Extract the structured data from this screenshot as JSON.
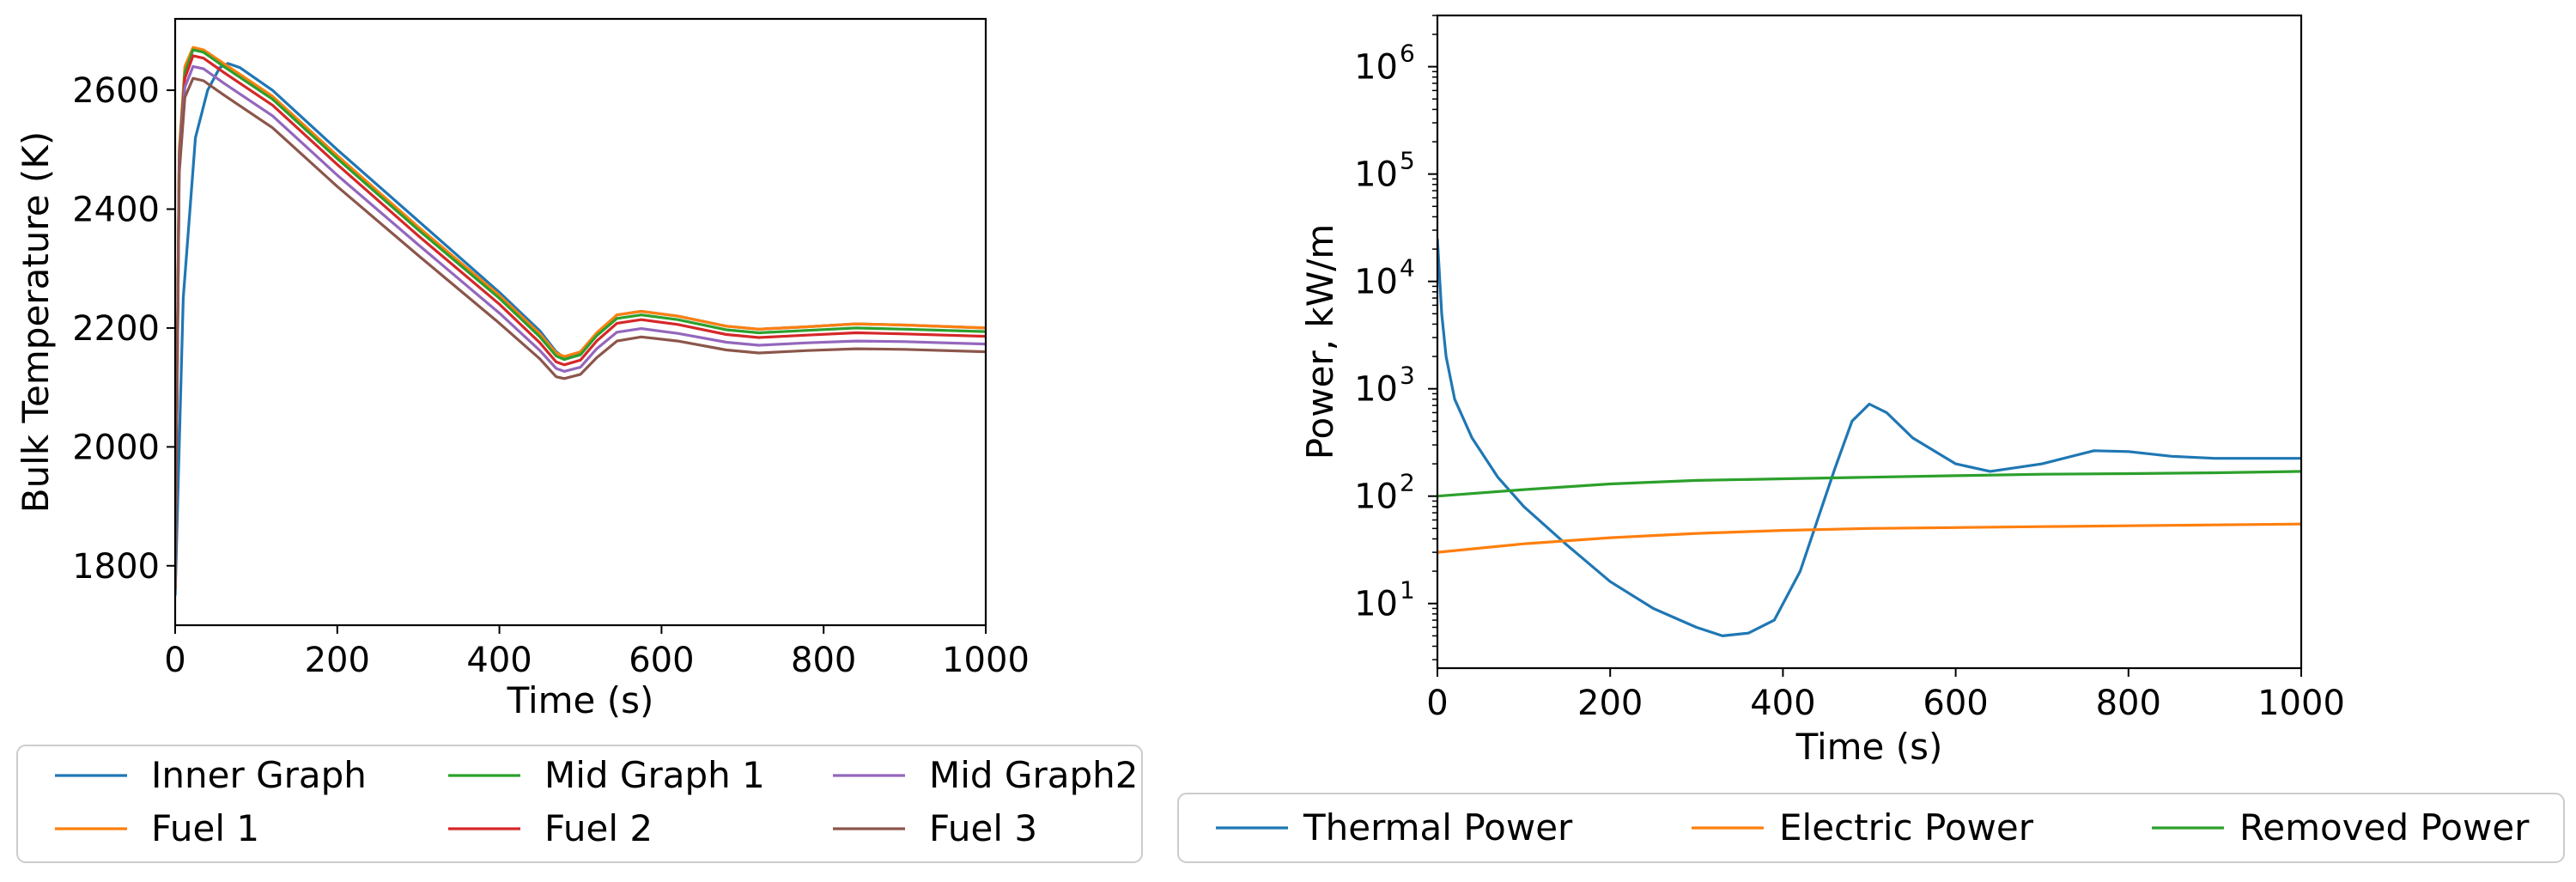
{
  "chart_data": [
    {
      "type": "line",
      "title": "",
      "xlabel": "Time (s)",
      "ylabel": "Bulk Temperature (K)",
      "xlim": [
        0,
        1000
      ],
      "ylim": [
        1700,
        2720
      ],
      "x_ticks": [
        0,
        200,
        400,
        600,
        800,
        1000
      ],
      "y_ticks": [
        1800,
        2000,
        2200,
        2400,
        2600
      ],
      "grid": false,
      "legend_position": "bottom",
      "series": [
        {
          "name": "Inner Graph",
          "color": "#1f77b4",
          "points": [
            [
              0,
              1750
            ],
            [
              10,
              2250
            ],
            [
              25,
              2520
            ],
            [
              40,
              2600
            ],
            [
              55,
              2638
            ],
            [
              65,
              2645
            ],
            [
              80,
              2638
            ],
            [
              120,
              2600
            ],
            [
              200,
              2500
            ],
            [
              300,
              2380
            ],
            [
              400,
              2260
            ],
            [
              450,
              2195
            ],
            [
              470,
              2160
            ],
            [
              480,
              2150
            ],
            [
              500,
              2158
            ],
            [
              520,
              2190
            ],
            [
              545,
              2222
            ],
            [
              575,
              2228
            ],
            [
              620,
              2220
            ],
            [
              680,
              2203
            ],
            [
              720,
              2198
            ],
            [
              780,
              2202
            ],
            [
              840,
              2207
            ],
            [
              900,
              2205
            ],
            [
              1000,
              2200
            ]
          ]
        },
        {
          "name": "Fuel 1",
          "color": "#ff7f0e",
          "points": [
            [
              0,
              1760
            ],
            [
              5,
              2500
            ],
            [
              12,
              2640
            ],
            [
              22,
              2672
            ],
            [
              35,
              2668
            ],
            [
              60,
              2645
            ],
            [
              120,
              2590
            ],
            [
              200,
              2490
            ],
            [
              300,
              2370
            ],
            [
              400,
              2255
            ],
            [
              450,
              2190
            ],
            [
              470,
              2158
            ],
            [
              480,
              2152
            ],
            [
              500,
              2160
            ],
            [
              520,
              2192
            ],
            [
              545,
              2222
            ],
            [
              575,
              2228
            ],
            [
              620,
              2220
            ],
            [
              680,
              2203
            ],
            [
              720,
              2198
            ],
            [
              780,
              2202
            ],
            [
              840,
              2207
            ],
            [
              900,
              2205
            ],
            [
              1000,
              2200
            ]
          ]
        },
        {
          "name": "Mid Graph 1",
          "color": "#2ca02c",
          "points": [
            [
              0,
              1760
            ],
            [
              5,
              2490
            ],
            [
              12,
              2630
            ],
            [
              22,
              2668
            ],
            [
              35,
              2664
            ],
            [
              60,
              2640
            ],
            [
              120,
              2585
            ],
            [
              200,
              2485
            ],
            [
              300,
              2365
            ],
            [
              400,
              2250
            ],
            [
              450,
              2185
            ],
            [
              470,
              2153
            ],
            [
              480,
              2147
            ],
            [
              500,
              2155
            ],
            [
              520,
              2187
            ],
            [
              545,
              2216
            ],
            [
              575,
              2222
            ],
            [
              620,
              2214
            ],
            [
              680,
              2197
            ],
            [
              720,
              2192
            ],
            [
              780,
              2196
            ],
            [
              840,
              2200
            ],
            [
              900,
              2198
            ],
            [
              1000,
              2194
            ]
          ]
        },
        {
          "name": "Fuel 2",
          "color": "#d62728",
          "points": [
            [
              0,
              1760
            ],
            [
              5,
              2480
            ],
            [
              12,
              2620
            ],
            [
              22,
              2658
            ],
            [
              35,
              2654
            ],
            [
              60,
              2630
            ],
            [
              120,
              2575
            ],
            [
              200,
              2475
            ],
            [
              300,
              2355
            ],
            [
              400,
              2240
            ],
            [
              450,
              2175
            ],
            [
              470,
              2143
            ],
            [
              480,
              2138
            ],
            [
              500,
              2146
            ],
            [
              520,
              2178
            ],
            [
              545,
              2208
            ],
            [
              575,
              2214
            ],
            [
              620,
              2206
            ],
            [
              680,
              2189
            ],
            [
              720,
              2184
            ],
            [
              780,
              2188
            ],
            [
              840,
              2192
            ],
            [
              900,
              2190
            ],
            [
              1000,
              2186
            ]
          ]
        },
        {
          "name": "Mid Graph2",
          "color": "#9467bd",
          "points": [
            [
              0,
              1760
            ],
            [
              5,
              2470
            ],
            [
              12,
              2605
            ],
            [
              22,
              2640
            ],
            [
              35,
              2636
            ],
            [
              60,
              2612
            ],
            [
              120,
              2557
            ],
            [
              200,
              2457
            ],
            [
              300,
              2340
            ],
            [
              400,
              2225
            ],
            [
              450,
              2162
            ],
            [
              470,
              2132
            ],
            [
              480,
              2127
            ],
            [
              500,
              2134
            ],
            [
              520,
              2165
            ],
            [
              545,
              2193
            ],
            [
              575,
              2199
            ],
            [
              620,
              2191
            ],
            [
              680,
              2176
            ],
            [
              720,
              2171
            ],
            [
              780,
              2175
            ],
            [
              840,
              2178
            ],
            [
              900,
              2177
            ],
            [
              1000,
              2173
            ]
          ]
        },
        {
          "name": "Fuel 3",
          "color": "#8c564b",
          "points": [
            [
              0,
              1760
            ],
            [
              5,
              2460
            ],
            [
              12,
              2588
            ],
            [
              22,
              2620
            ],
            [
              35,
              2616
            ],
            [
              60,
              2592
            ],
            [
              120,
              2537
            ],
            [
              200,
              2438
            ],
            [
              300,
              2322
            ],
            [
              400,
              2208
            ],
            [
              450,
              2148
            ],
            [
              470,
              2118
            ],
            [
              480,
              2115
            ],
            [
              500,
              2122
            ],
            [
              520,
              2150
            ],
            [
              545,
              2178
            ],
            [
              575,
              2185
            ],
            [
              620,
              2178
            ],
            [
              680,
              2163
            ],
            [
              720,
              2158
            ],
            [
              780,
              2162
            ],
            [
              840,
              2165
            ],
            [
              900,
              2164
            ],
            [
              1000,
              2160
            ]
          ]
        }
      ]
    },
    {
      "type": "line",
      "title": "",
      "xlabel": "Time (s)",
      "ylabel": "Power, kW/m",
      "xscale": "linear",
      "yscale": "log",
      "xlim": [
        0,
        1000
      ],
      "ylim": [
        2.5,
        3000000
      ],
      "x_ticks": [
        0,
        200,
        400,
        600,
        800,
        1000
      ],
      "y_tick_base": "10",
      "y_tick_exponents": [
        "1",
        "2",
        "3",
        "4",
        "5",
        "6"
      ],
      "grid": false,
      "legend_position": "bottom",
      "series": [
        {
          "name": "Thermal Power",
          "color": "#1f77b4",
          "points": [
            [
              0,
              25000
            ],
            [
              5,
              5000
            ],
            [
              10,
              2000
            ],
            [
              20,
              800
            ],
            [
              40,
              350
            ],
            [
              70,
              150
            ],
            [
              100,
              80
            ],
            [
              150,
              35
            ],
            [
              200,
              16
            ],
            [
              250,
              9
            ],
            [
              300,
              6
            ],
            [
              330,
              5
            ],
            [
              360,
              5.3
            ],
            [
              390,
              7
            ],
            [
              420,
              20
            ],
            [
              440,
              60
            ],
            [
              460,
              180
            ],
            [
              480,
              500
            ],
            [
              500,
              720
            ],
            [
              520,
              600
            ],
            [
              550,
              350
            ],
            [
              600,
              200
            ],
            [
              640,
              170
            ],
            [
              700,
              200
            ],
            [
              760,
              265
            ],
            [
              800,
              260
            ],
            [
              850,
              235
            ],
            [
              900,
              225
            ],
            [
              1000,
              225
            ]
          ]
        },
        {
          "name": "Electric Power",
          "color": "#ff7f0e",
          "points": [
            [
              0,
              30
            ],
            [
              100,
              36
            ],
            [
              200,
              41
            ],
            [
              300,
              45
            ],
            [
              400,
              48
            ],
            [
              500,
              50
            ],
            [
              600,
              51
            ],
            [
              700,
              52
            ],
            [
              800,
              53
            ],
            [
              900,
              54
            ],
            [
              1000,
              55
            ]
          ]
        },
        {
          "name": "Removed Power",
          "color": "#2ca02c",
          "points": [
            [
              0,
              100
            ],
            [
              100,
              115
            ],
            [
              200,
              130
            ],
            [
              300,
              140
            ],
            [
              400,
              145
            ],
            [
              500,
              150
            ],
            [
              600,
              155
            ],
            [
              700,
              160
            ],
            [
              800,
              162
            ],
            [
              900,
              165
            ],
            [
              1000,
              170
            ]
          ]
        }
      ]
    }
  ]
}
